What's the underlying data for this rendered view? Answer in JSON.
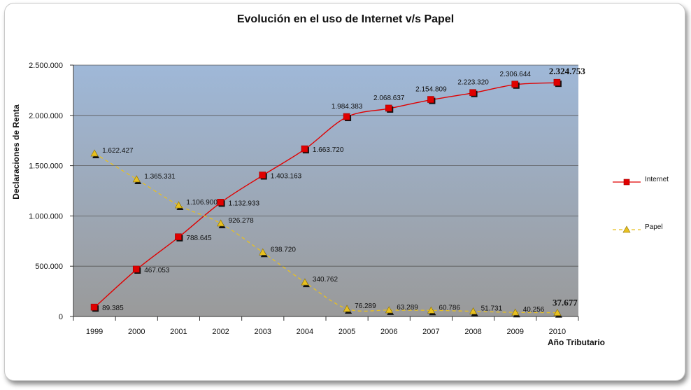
{
  "chart_data": {
    "type": "line",
    "title": "Evolución en el uso de Internet v/s Papel",
    "xlabel": "Año Tributario",
    "ylabel": "Declaraciones de Renta",
    "categories": [
      "1999",
      "2000",
      "2001",
      "2002",
      "2003",
      "2004",
      "2005",
      "2006",
      "2007",
      "2008",
      "2009",
      "2010"
    ],
    "ylim": [
      0,
      2500000
    ],
    "yticks": [
      {
        "value": 0,
        "label": "0"
      },
      {
        "value": 500000,
        "label": "500.000"
      },
      {
        "value": 1000000,
        "label": "1.000.000"
      },
      {
        "value": 1500000,
        "label": "1.500.000"
      },
      {
        "value": 2000000,
        "label": "2.000.000"
      },
      {
        "value": 2500000,
        "label": "2.500.000"
      }
    ],
    "grid": true,
    "legend_position": "right",
    "series": [
      {
        "name": "Internet",
        "color": "#e00000",
        "marker": "square",
        "line_style": "solid",
        "values": [
          89385,
          467053,
          788645,
          1132933,
          1403163,
          1663720,
          1984383,
          2068637,
          2154809,
          2223320,
          2306644,
          2324753
        ],
        "labels": [
          "89.385",
          "467.053",
          "788.645",
          "1.132.933",
          "1.403.163",
          "1.663.720",
          "1.984.383",
          "2.068.637",
          "2.154.809",
          "2.223.320",
          "2.306.644",
          "2.324.753"
        ]
      },
      {
        "name": "Papel",
        "color": "#e8c020",
        "marker": "triangle",
        "line_style": "dashed",
        "values": [
          1622427,
          1365331,
          1106900,
          926278,
          638720,
          340762,
          76289,
          63289,
          60786,
          51731,
          40256,
          37677
        ],
        "labels": [
          "1.622.427",
          "1.365.331",
          "1.106.900",
          "926.278",
          "638.720",
          "340.762",
          "76.289",
          "63.289",
          "60.786",
          "51.731",
          "40.256",
          "37.677"
        ]
      }
    ],
    "colors": {
      "plot_top": "#9fb8d8",
      "plot_bottom": "#9a9a9a",
      "gridline": "#5a5a5a"
    }
  }
}
